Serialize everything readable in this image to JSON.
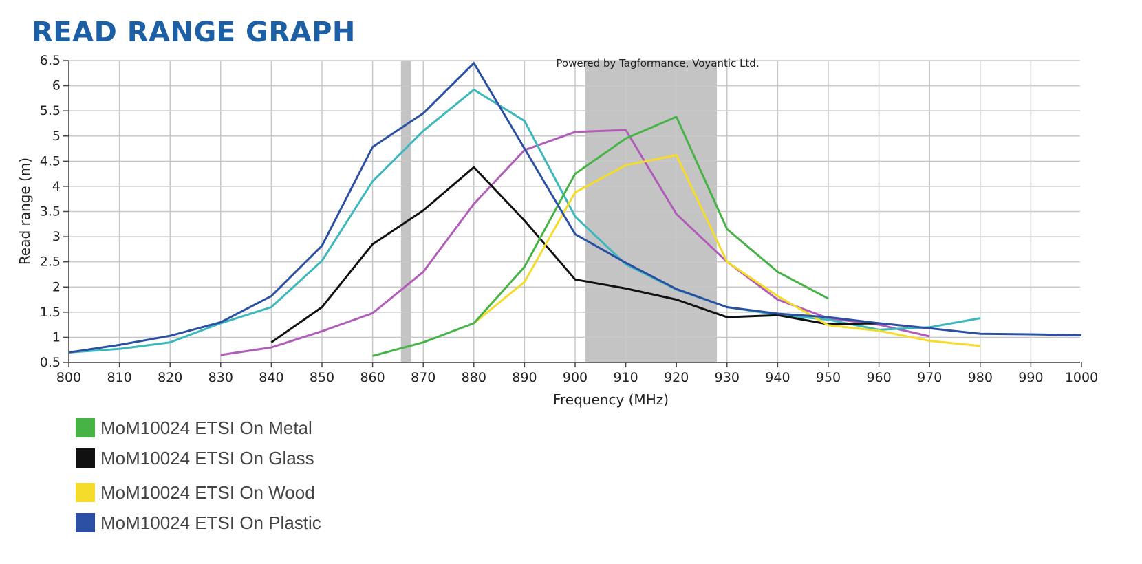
{
  "title": "READ RANGE GRAPH",
  "chart_data": {
    "type": "line",
    "xlabel": "Frequency (MHz)",
    "ylabel": "Read range (m)",
    "xlim": [
      800,
      1000
    ],
    "ylim": [
      0.5,
      6.5
    ],
    "xticks": [
      "800",
      "810",
      "820",
      "830",
      "840",
      "850",
      "860",
      "870",
      "880",
      "890",
      "900",
      "910",
      "920",
      "930",
      "940",
      "950",
      "960",
      "970",
      "980",
      "990",
      "1000"
    ],
    "yticks": [
      "0.5",
      "1",
      "1.5",
      "2",
      "2.5",
      "3",
      "3.5",
      "4",
      "4.5",
      "5",
      "5.5",
      "6",
      "6.5"
    ],
    "grid": true,
    "watermark": "Powered by Tagformance, Voyantic Ltd.",
    "bands": [
      {
        "from": 865.6,
        "to": 867.6
      },
      {
        "from": 902,
        "to": 928
      }
    ],
    "series": [
      {
        "name": "",
        "color": "#b05cb8",
        "x": [
          830,
          840,
          850,
          860,
          870,
          880,
          890,
          900,
          910,
          920,
          930,
          940,
          950,
          960,
          970
        ],
        "y": [
          0.65,
          0.8,
          1.12,
          1.48,
          2.3,
          3.65,
          4.72,
          5.08,
          5.12,
          3.45,
          2.5,
          1.75,
          1.38,
          1.25,
          1.02
        ]
      },
      {
        "name": "",
        "color": "#3bb8bc",
        "x": [
          800,
          810,
          820,
          830,
          840,
          850,
          860,
          870,
          880,
          890,
          900,
          910,
          920,
          930,
          940,
          950,
          960,
          970,
          980
        ],
        "y": [
          0.7,
          0.77,
          0.9,
          1.28,
          1.6,
          2.52,
          4.1,
          5.1,
          5.92,
          5.3,
          3.4,
          2.45,
          1.95,
          1.6,
          1.45,
          1.35,
          1.15,
          1.2,
          1.38
        ]
      },
      {
        "name": "MoM10024 ETSI On Glass",
        "color": "#111111",
        "x": [
          840,
          850,
          860,
          870,
          880,
          890,
          900,
          910,
          920,
          930,
          940,
          950,
          960
        ],
        "y": [
          0.9,
          1.6,
          2.85,
          3.52,
          4.38,
          3.32,
          2.15,
          1.97,
          1.75,
          1.4,
          1.44,
          1.26,
          1.28
        ]
      },
      {
        "name": "MoM10024 ETSI On Wood",
        "color": "#f5dc2a",
        "x": [
          880,
          890,
          900,
          910,
          920,
          930,
          940,
          950,
          960,
          970,
          980
        ],
        "y": [
          1.28,
          2.1,
          3.88,
          4.42,
          4.62,
          2.5,
          1.82,
          1.24,
          1.13,
          0.93,
          0.83
        ]
      },
      {
        "name": "MoM10024 ETSI On Metal",
        "color": "#47b347",
        "x": [
          860,
          870,
          880,
          890,
          900,
          910,
          920,
          930,
          940,
          950
        ],
        "y": [
          0.63,
          0.9,
          1.28,
          2.4,
          4.25,
          4.95,
          5.38,
          3.15,
          2.3,
          1.77
        ]
      },
      {
        "name": "MoM10024 ETSI On Plastic",
        "color": "#2a4fa3",
        "x": [
          800,
          810,
          820,
          830,
          840,
          850,
          860,
          870,
          880,
          890,
          900,
          910,
          920,
          930,
          940,
          950,
          960,
          970,
          980,
          990,
          1000
        ],
        "y": [
          0.7,
          0.85,
          1.03,
          1.3,
          1.82,
          2.82,
          4.78,
          5.45,
          6.45,
          4.75,
          3.05,
          2.48,
          1.96,
          1.6,
          1.47,
          1.4,
          1.28,
          1.18,
          1.07,
          1.06,
          1.04
        ]
      }
    ]
  },
  "legend": [
    {
      "label": "MoM10024 ETSI On Metal",
      "color": "#47b347"
    },
    {
      "label": "MoM10024 ETSI On Glass",
      "color": "#111111"
    },
    {
      "label": "MoM10024 ETSI On Wood",
      "color": "#f5dc2a"
    },
    {
      "label": "MoM10024 ETSI On Plastic",
      "color": "#2a4fa3"
    }
  ]
}
